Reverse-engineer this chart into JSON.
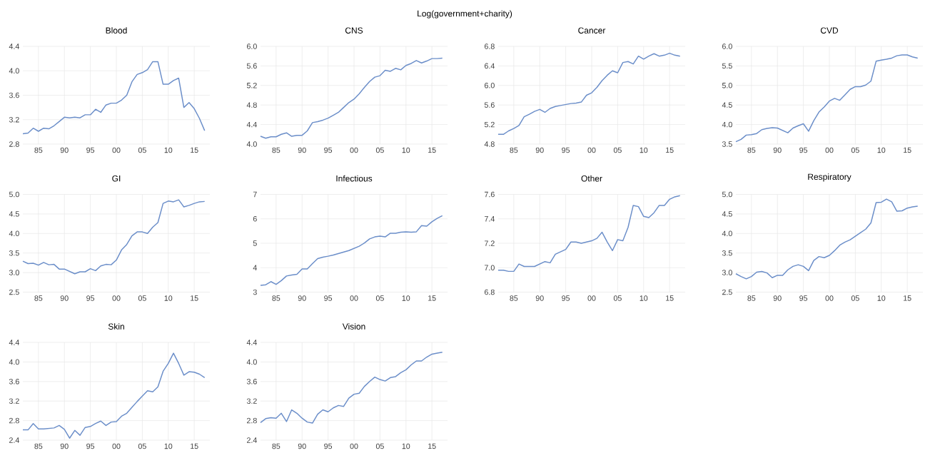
{
  "chart_data": [
    {
      "type": "line",
      "title": "Blood",
      "annotations": [
        "Log(government+charity)"
      ],
      "color": "#6b8ec9",
      "grid": true,
      "x": [
        1982,
        1983,
        1984,
        1985,
        1986,
        1987,
        1988,
        1989,
        1990,
        1991,
        1992,
        1993,
        1994,
        1995,
        1996,
        1997,
        1998,
        1999,
        2000,
        2001,
        2002,
        2003,
        2004,
        2005,
        2006,
        2007,
        2008,
        2009,
        2010,
        2011,
        2012,
        2013,
        2014,
        2015,
        2016,
        2017
      ],
      "values": [
        2.97,
        2.98,
        3.06,
        3.01,
        3.06,
        3.05,
        3.1,
        3.17,
        3.24,
        3.23,
        3.24,
        3.23,
        3.28,
        3.28,
        3.37,
        3.32,
        3.44,
        3.47,
        3.47,
        3.52,
        3.6,
        3.82,
        3.94,
        3.97,
        4.02,
        4.15,
        4.15,
        3.78,
        3.78,
        3.84,
        3.88,
        3.4,
        3.48,
        3.38,
        3.22,
        3.02
      ],
      "xlim": [
        1982,
        2018
      ],
      "xticks": [
        {
          "value": 1985,
          "label": "85"
        },
        {
          "value": 1990,
          "label": "90"
        },
        {
          "value": 1995,
          "label": "95"
        },
        {
          "value": 2000,
          "label": "00"
        },
        {
          "value": 2005,
          "label": "05"
        },
        {
          "value": 2010,
          "label": "10"
        },
        {
          "value": 2015,
          "label": "15"
        }
      ],
      "ylim": [
        2.8,
        4.4
      ],
      "yticks": [
        2.8,
        3.2,
        3.6,
        {
          "value": 4.0,
          "label": "4.0"
        },
        4.4
      ]
    },
    {
      "type": "line",
      "title": "CNS",
      "color": "#6b8ec9",
      "grid": true,
      "x": [
        1982,
        1983,
        1984,
        1985,
        1986,
        1987,
        1988,
        1989,
        1990,
        1991,
        1992,
        1993,
        1994,
        1995,
        1996,
        1997,
        1998,
        1999,
        2000,
        2001,
        2002,
        2003,
        2004,
        2005,
        2006,
        2007,
        2008,
        2009,
        2010,
        2011,
        2012,
        2013,
        2014,
        2015,
        2016,
        2017
      ],
      "values": [
        4.16,
        4.12,
        4.15,
        4.15,
        4.2,
        4.23,
        4.16,
        4.18,
        4.18,
        4.27,
        4.44,
        4.46,
        4.49,
        4.53,
        4.59,
        4.65,
        4.75,
        4.85,
        4.92,
        5.03,
        5.16,
        5.28,
        5.37,
        5.4,
        5.51,
        5.49,
        5.55,
        5.52,
        5.61,
        5.65,
        5.71,
        5.66,
        5.7,
        5.75,
        5.75,
        5.76
      ],
      "xlim": [
        1982,
        2018
      ],
      "xticks": [
        {
          "value": 1985,
          "label": "85"
        },
        {
          "value": 1990,
          "label": "90"
        },
        {
          "value": 1995,
          "label": "95"
        },
        {
          "value": 2000,
          "label": "00"
        },
        {
          "value": 2005,
          "label": "05"
        },
        {
          "value": 2010,
          "label": "10"
        },
        {
          "value": 2015,
          "label": "15"
        }
      ],
      "ylim": [
        4.0,
        6.0
      ],
      "yticks": [
        {
          "value": 4.0,
          "label": "4.0"
        },
        4.4,
        4.8,
        5.2,
        5.6,
        {
          "value": 6.0,
          "label": "6.0"
        }
      ]
    },
    {
      "type": "line",
      "title": "Cancer",
      "color": "#6b8ec9",
      "grid": true,
      "x": [
        1982,
        1983,
        1984,
        1985,
        1986,
        1987,
        1988,
        1989,
        1990,
        1991,
        1992,
        1993,
        1994,
        1995,
        1996,
        1997,
        1998,
        1999,
        2000,
        2001,
        2002,
        2003,
        2004,
        2005,
        2006,
        2007,
        2008,
        2009,
        2010,
        2011,
        2012,
        2013,
        2014,
        2015,
        2016,
        2017
      ],
      "values": [
        5.0,
        5.0,
        5.07,
        5.12,
        5.18,
        5.36,
        5.41,
        5.47,
        5.51,
        5.45,
        5.53,
        5.57,
        5.59,
        5.61,
        5.63,
        5.64,
        5.66,
        5.8,
        5.85,
        5.96,
        6.1,
        6.21,
        6.3,
        6.26,
        6.47,
        6.49,
        6.44,
        6.6,
        6.54,
        6.6,
        6.65,
        6.6,
        6.62,
        6.66,
        6.62,
        6.6
      ],
      "xlim": [
        1982,
        2018
      ],
      "xticks": [
        {
          "value": 1985,
          "label": "85"
        },
        {
          "value": 1990,
          "label": "90"
        },
        {
          "value": 1995,
          "label": "95"
        },
        {
          "value": 2000,
          "label": "00"
        },
        {
          "value": 2005,
          "label": "05"
        },
        {
          "value": 2010,
          "label": "10"
        },
        {
          "value": 2015,
          "label": "15"
        }
      ],
      "ylim": [
        4.8,
        6.8
      ],
      "yticks": [
        4.8,
        5.2,
        5.6,
        {
          "value": 6.0,
          "label": "6.0"
        },
        6.4,
        6.8
      ]
    },
    {
      "type": "line",
      "title": "CVD",
      "color": "#6b8ec9",
      "grid": true,
      "x": [
        1982,
        1983,
        1984,
        1985,
        1986,
        1987,
        1988,
        1989,
        1990,
        1991,
        1992,
        1993,
        1994,
        1995,
        1996,
        1997,
        1998,
        1999,
        2000,
        2001,
        2002,
        2003,
        2004,
        2005,
        2006,
        2007,
        2008,
        2009,
        2010,
        2011,
        2012,
        2013,
        2014,
        2015,
        2016,
        2017
      ],
      "values": [
        3.56,
        3.62,
        3.73,
        3.74,
        3.77,
        3.87,
        3.9,
        3.92,
        3.91,
        3.85,
        3.79,
        3.91,
        3.97,
        4.02,
        3.83,
        4.1,
        4.32,
        4.45,
        4.6,
        4.67,
        4.62,
        4.76,
        4.9,
        4.97,
        4.97,
        5.01,
        5.11,
        5.62,
        5.65,
        5.67,
        5.7,
        5.76,
        5.78,
        5.78,
        5.73,
        5.7
      ],
      "xlim": [
        1982,
        2018
      ],
      "xticks": [
        {
          "value": 1985,
          "label": "85"
        },
        {
          "value": 1990,
          "label": "90"
        },
        {
          "value": 1995,
          "label": "95"
        },
        {
          "value": 2000,
          "label": "00"
        },
        {
          "value": 2005,
          "label": "05"
        },
        {
          "value": 2010,
          "label": "10"
        },
        {
          "value": 2015,
          "label": "15"
        }
      ],
      "ylim": [
        3.5,
        6.0
      ],
      "yticks": [
        3.5,
        {
          "value": 4.0,
          "label": "4.0"
        },
        4.5,
        {
          "value": 5.0,
          "label": "5.0"
        },
        5.5,
        {
          "value": 6.0,
          "label": "6.0"
        }
      ]
    },
    {
      "type": "line",
      "title": "GI",
      "color": "#6b8ec9",
      "grid": true,
      "x": [
        1982,
        1983,
        1984,
        1985,
        1986,
        1987,
        1988,
        1989,
        1990,
        1991,
        1992,
        1993,
        1994,
        1995,
        1996,
        1997,
        1998,
        1999,
        2000,
        2001,
        2002,
        2003,
        2004,
        2005,
        2006,
        2007,
        2008,
        2009,
        2010,
        2011,
        2012,
        2013,
        2014,
        2015,
        2016,
        2017
      ],
      "values": [
        3.29,
        3.23,
        3.24,
        3.19,
        3.26,
        3.2,
        3.21,
        3.09,
        3.09,
        3.03,
        2.97,
        3.02,
        3.02,
        3.1,
        3.05,
        3.17,
        3.21,
        3.2,
        3.32,
        3.58,
        3.72,
        3.94,
        4.04,
        4.04,
        4.0,
        4.16,
        4.28,
        4.77,
        4.83,
        4.81,
        4.86,
        4.68,
        4.72,
        4.77,
        4.81,
        4.82
      ],
      "xlim": [
        1982,
        2018
      ],
      "xticks": [
        {
          "value": 1985,
          "label": "85"
        },
        {
          "value": 1990,
          "label": "90"
        },
        {
          "value": 1995,
          "label": "95"
        },
        {
          "value": 2000,
          "label": "00"
        },
        {
          "value": 2005,
          "label": "05"
        },
        {
          "value": 2010,
          "label": "10"
        },
        {
          "value": 2015,
          "label": "15"
        }
      ],
      "ylim": [
        2.5,
        5.0
      ],
      "yticks": [
        2.5,
        {
          "value": 3.0,
          "label": "3.0"
        },
        3.5,
        {
          "value": 4.0,
          "label": "4.0"
        },
        4.5,
        {
          "value": 5.0,
          "label": "5.0"
        }
      ]
    },
    {
      "type": "line",
      "title": "Infectious",
      "color": "#6b8ec9",
      "grid": true,
      "x": [
        1982,
        1983,
        1984,
        1985,
        1986,
        1987,
        1988,
        1989,
        1990,
        1991,
        1992,
        1993,
        1994,
        1995,
        1996,
        1997,
        1998,
        1999,
        2000,
        2001,
        2002,
        2003,
        2004,
        2005,
        2006,
        2007,
        2008,
        2009,
        2010,
        2011,
        2012,
        2013,
        2014,
        2015,
        2016,
        2017
      ],
      "values": [
        3.28,
        3.3,
        3.43,
        3.32,
        3.47,
        3.66,
        3.7,
        3.73,
        3.95,
        3.95,
        4.17,
        4.37,
        4.43,
        4.47,
        4.52,
        4.58,
        4.64,
        4.7,
        4.79,
        4.88,
        5.01,
        5.18,
        5.26,
        5.29,
        5.26,
        5.41,
        5.41,
        5.45,
        5.47,
        5.45,
        5.47,
        5.72,
        5.7,
        5.88,
        6.02,
        6.13
      ],
      "xlim": [
        1982,
        2018
      ],
      "xticks": [
        {
          "value": 1985,
          "label": "85"
        },
        {
          "value": 1990,
          "label": "90"
        },
        {
          "value": 1995,
          "label": "95"
        },
        {
          "value": 2000,
          "label": "00"
        },
        {
          "value": 2005,
          "label": "05"
        },
        {
          "value": 2010,
          "label": "10"
        },
        {
          "value": 2015,
          "label": "15"
        }
      ],
      "ylim": [
        3,
        7
      ],
      "yticks": [
        3,
        4,
        5,
        6,
        7
      ]
    },
    {
      "type": "line",
      "title": "Other",
      "color": "#6b8ec9",
      "grid": true,
      "x": [
        1982,
        1983,
        1984,
        1985,
        1986,
        1987,
        1988,
        1989,
        1990,
        1991,
        1992,
        1993,
        1994,
        1995,
        1996,
        1997,
        1998,
        1999,
        2000,
        2001,
        2002,
        2003,
        2004,
        2005,
        2006,
        2007,
        2008,
        2009,
        2010,
        2011,
        2012,
        2013,
        2014,
        2015,
        2016,
        2017
      ],
      "values": [
        6.98,
        6.98,
        6.97,
        6.97,
        7.03,
        7.01,
        7.01,
        7.01,
        7.03,
        7.05,
        7.04,
        7.11,
        7.13,
        7.15,
        7.21,
        7.21,
        7.2,
        7.21,
        7.22,
        7.24,
        7.29,
        7.21,
        7.14,
        7.23,
        7.22,
        7.33,
        7.51,
        7.5,
        7.42,
        7.41,
        7.45,
        7.51,
        7.51,
        7.56,
        7.58,
        7.59
      ],
      "xlim": [
        1982,
        2018
      ],
      "xticks": [
        {
          "value": 1985,
          "label": "85"
        },
        {
          "value": 1990,
          "label": "90"
        },
        {
          "value": 1995,
          "label": "95"
        },
        {
          "value": 2000,
          "label": "00"
        },
        {
          "value": 2005,
          "label": "05"
        },
        {
          "value": 2010,
          "label": "10"
        },
        {
          "value": 2015,
          "label": "15"
        }
      ],
      "ylim": [
        6.8,
        7.6
      ],
      "yticks": [
        6.8,
        {
          "value": 7.0,
          "label": "7.0"
        },
        7.2,
        7.4,
        7.6
      ]
    },
    {
      "type": "line",
      "title": "Respiratory",
      "color": "#6b8ec9",
      "grid": true,
      "x": [
        1982,
        1983,
        1984,
        1985,
        1986,
        1987,
        1988,
        1989,
        1990,
        1991,
        1992,
        1993,
        1994,
        1995,
        1996,
        1997,
        1998,
        1999,
        2000,
        2001,
        2002,
        2003,
        2004,
        2005,
        2006,
        2007,
        2008,
        2009,
        2010,
        2011,
        2012,
        2013,
        2014,
        2015,
        2016,
        2017
      ],
      "values": [
        2.97,
        2.9,
        2.84,
        2.9,
        3.01,
        3.03,
        2.99,
        2.87,
        2.93,
        2.93,
        3.07,
        3.16,
        3.2,
        3.16,
        3.05,
        3.31,
        3.41,
        3.38,
        3.44,
        3.56,
        3.7,
        3.78,
        3.84,
        3.93,
        4.02,
        4.11,
        4.27,
        4.79,
        4.8,
        4.88,
        4.81,
        4.57,
        4.58,
        4.65,
        4.68,
        4.7
      ],
      "xlim": [
        1982,
        2018
      ],
      "xticks": [
        {
          "value": 1985,
          "label": "85"
        },
        {
          "value": 1990,
          "label": "90"
        },
        {
          "value": 1995,
          "label": "95"
        },
        {
          "value": 2000,
          "label": "00"
        },
        {
          "value": 2005,
          "label": "05"
        },
        {
          "value": 2010,
          "label": "10"
        },
        {
          "value": 2015,
          "label": "15"
        }
      ],
      "ylim": [
        2.5,
        5.0
      ],
      "yticks": [
        2.5,
        {
          "value": 3.0,
          "label": "3.0"
        },
        3.5,
        {
          "value": 4.0,
          "label": "4.0"
        },
        4.5,
        {
          "value": 5.0,
          "label": "5.0"
        }
      ]
    },
    {
      "type": "line",
      "title": "Skin",
      "color": "#6b8ec9",
      "grid": true,
      "x": [
        1982,
        1983,
        1984,
        1985,
        1986,
        1987,
        1988,
        1989,
        1990,
        1991,
        1992,
        1993,
        1994,
        1995,
        1996,
        1997,
        1998,
        1999,
        2000,
        2001,
        2002,
        2003,
        2004,
        2005,
        2006,
        2007,
        2008,
        2009,
        2010,
        2011,
        2012,
        2013,
        2014,
        2015,
        2016,
        2017
      ],
      "values": [
        2.61,
        2.61,
        2.74,
        2.63,
        2.63,
        2.64,
        2.65,
        2.7,
        2.62,
        2.44,
        2.6,
        2.5,
        2.66,
        2.68,
        2.74,
        2.79,
        2.7,
        2.77,
        2.78,
        2.89,
        2.95,
        3.07,
        3.19,
        3.3,
        3.41,
        3.39,
        3.49,
        3.81,
        3.97,
        4.18,
        3.97,
        3.73,
        3.8,
        3.79,
        3.75,
        3.68
      ],
      "xlim": [
        1982,
        2018
      ],
      "xticks": [
        {
          "value": 1985,
          "label": "85"
        },
        {
          "value": 1990,
          "label": "90"
        },
        {
          "value": 1995,
          "label": "95"
        },
        {
          "value": 2000,
          "label": "00"
        },
        {
          "value": 2005,
          "label": "05"
        },
        {
          "value": 2010,
          "label": "10"
        },
        {
          "value": 2015,
          "label": "15"
        }
      ],
      "ylim": [
        2.4,
        4.4
      ],
      "yticks": [
        2.4,
        2.8,
        3.2,
        3.6,
        {
          "value": 4.0,
          "label": "4.0"
        },
        4.4
      ]
    },
    {
      "type": "line",
      "title": "Vision",
      "color": "#6b8ec9",
      "grid": true,
      "x": [
        1982,
        1983,
        1984,
        1985,
        1986,
        1987,
        1988,
        1989,
        1990,
        1991,
        1992,
        1993,
        1994,
        1995,
        1996,
        1997,
        1998,
        1999,
        2000,
        2001,
        2002,
        2003,
        2004,
        2005,
        2006,
        2007,
        2008,
        2009,
        2010,
        2011,
        2012,
        2013,
        2014,
        2015,
        2016,
        2017
      ],
      "values": [
        2.76,
        2.84,
        2.86,
        2.85,
        2.95,
        2.78,
        3.02,
        2.95,
        2.85,
        2.77,
        2.75,
        2.93,
        3.02,
        2.98,
        3.06,
        3.11,
        3.09,
        3.26,
        3.34,
        3.36,
        3.5,
        3.6,
        3.69,
        3.64,
        3.61,
        3.68,
        3.7,
        3.78,
        3.84,
        3.94,
        4.02,
        4.02,
        4.1,
        4.16,
        4.18,
        4.2
      ],
      "xlim": [
        1982,
        2018
      ],
      "xticks": [
        {
          "value": 1985,
          "label": "85"
        },
        {
          "value": 1990,
          "label": "90"
        },
        {
          "value": 1995,
          "label": "95"
        },
        {
          "value": 2000,
          "label": "00"
        },
        {
          "value": 2005,
          "label": "05"
        },
        {
          "value": 2010,
          "label": "10"
        },
        {
          "value": 2015,
          "label": "15"
        }
      ],
      "ylim": [
        2.4,
        4.4
      ],
      "yticks": [
        2.4,
        2.8,
        3.2,
        3.6,
        {
          "value": 4.0,
          "label": "4.0"
        },
        4.4
      ]
    }
  ]
}
